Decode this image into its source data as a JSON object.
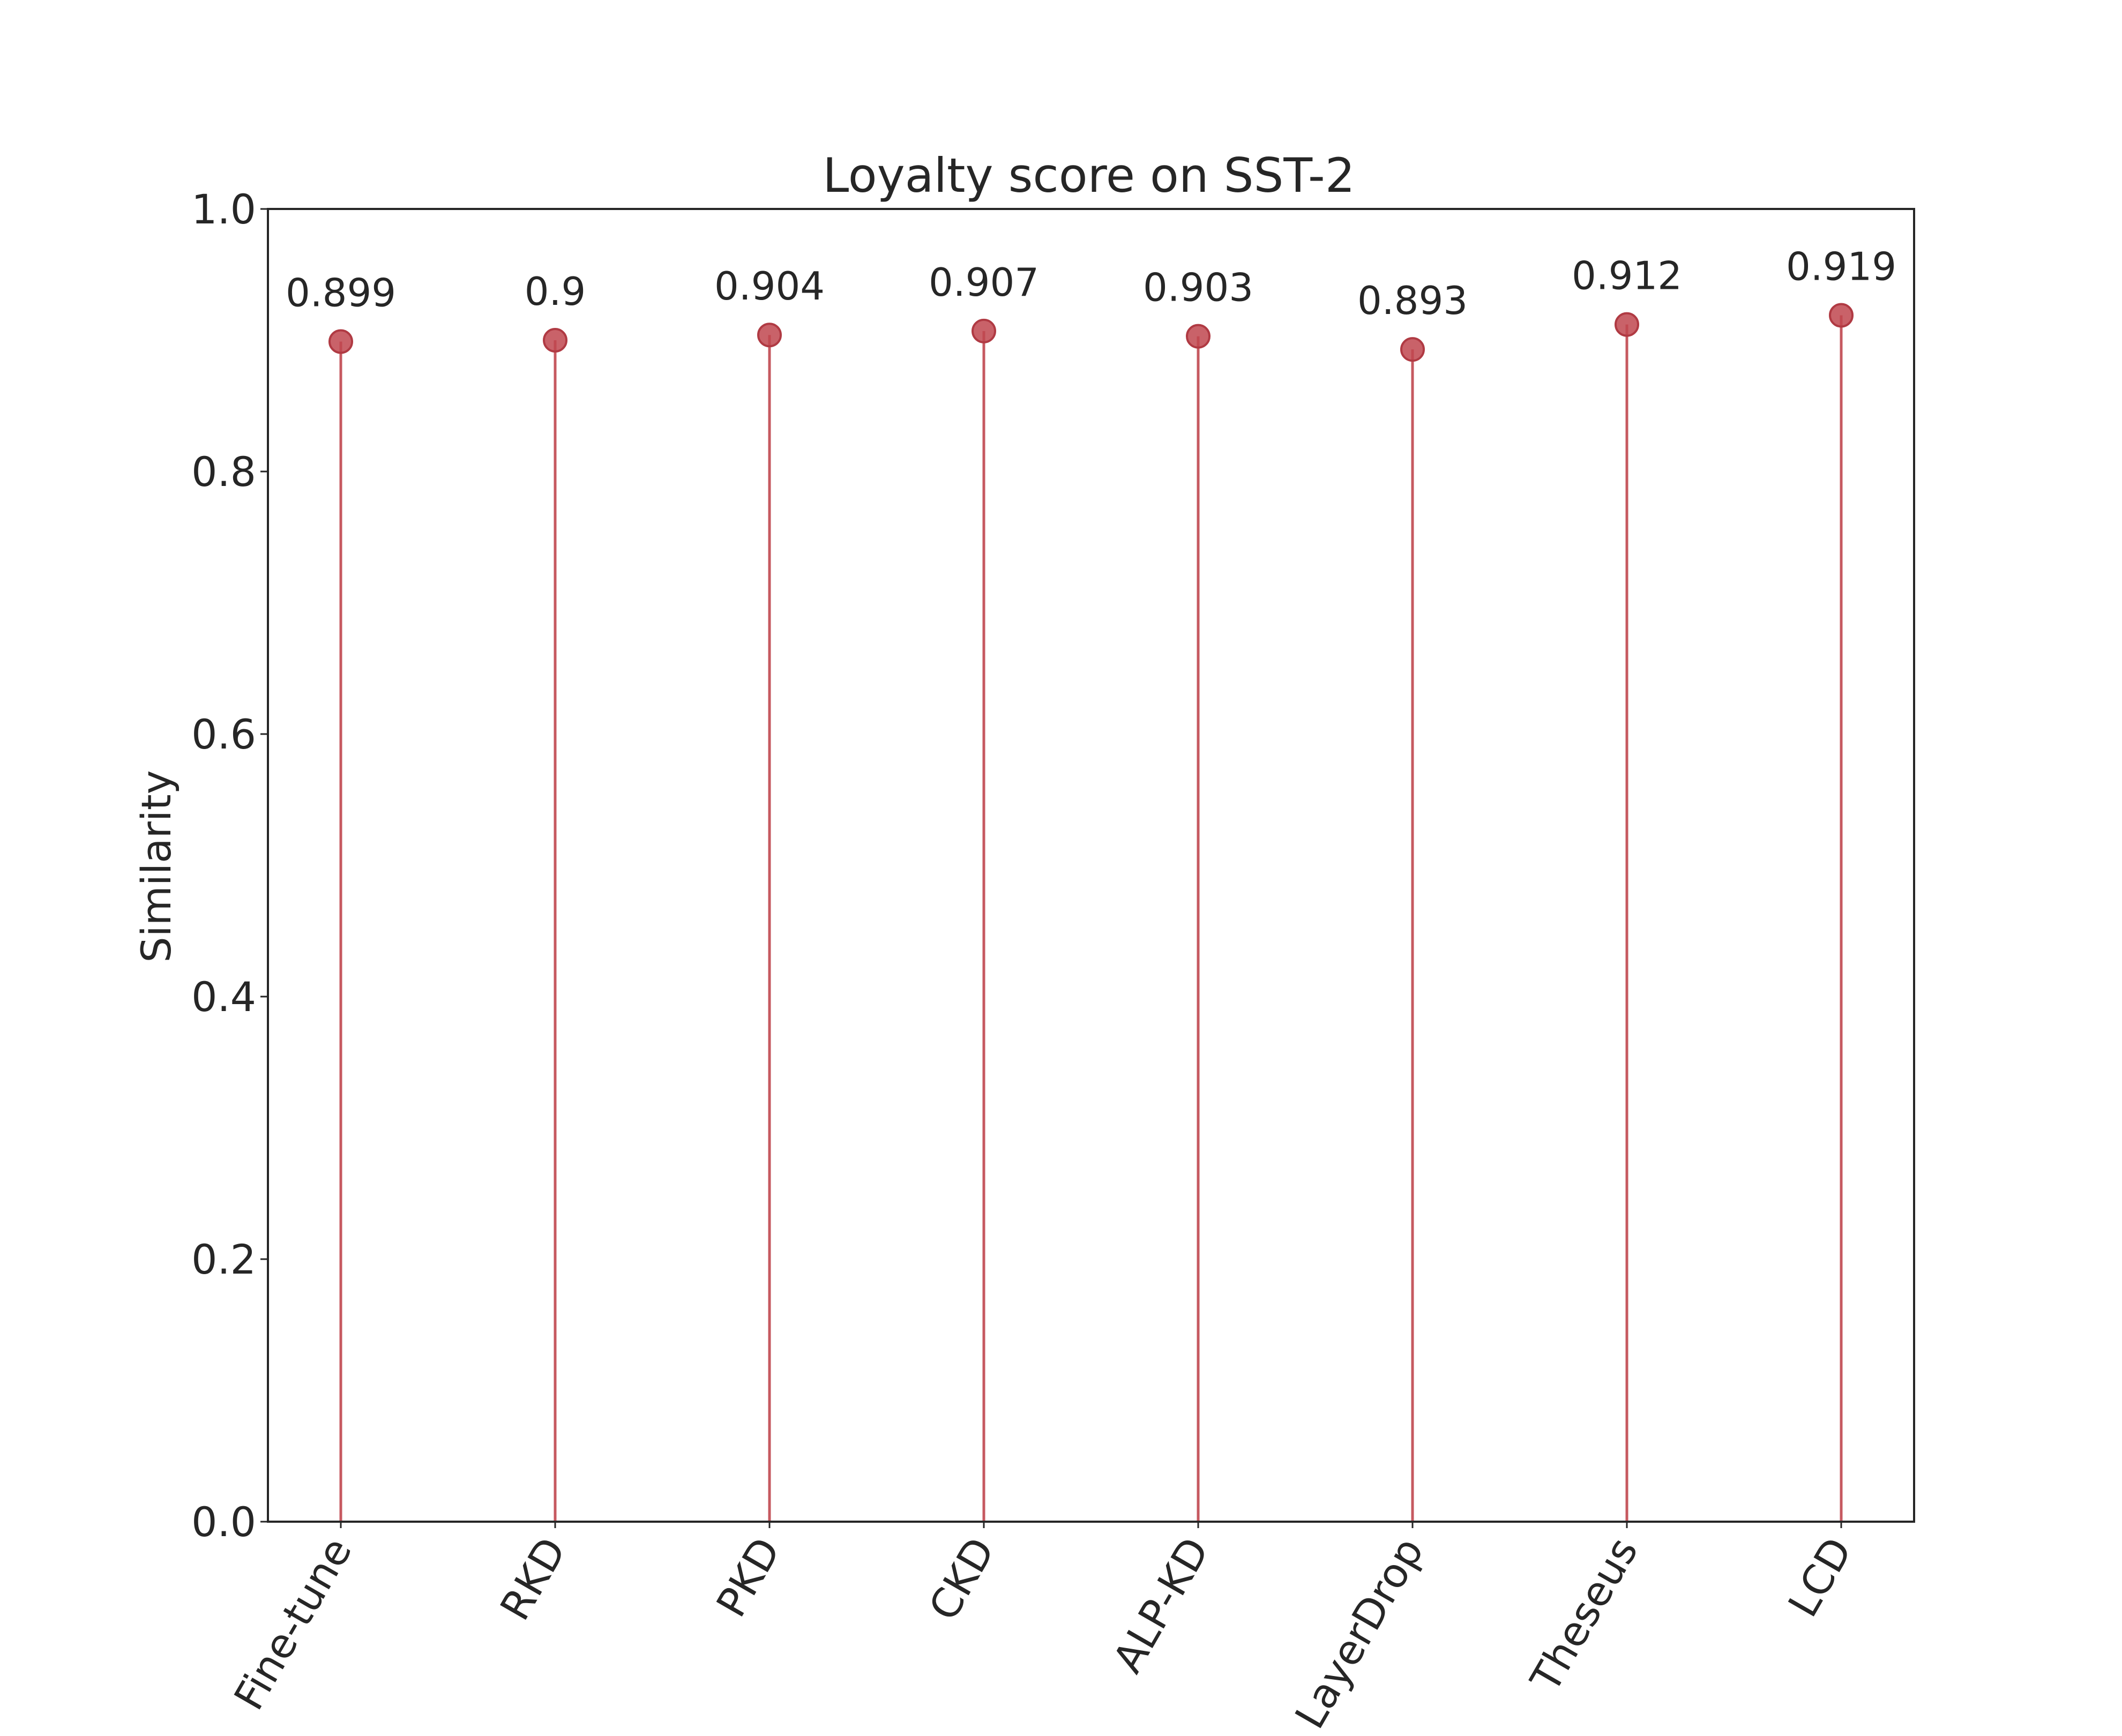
{
  "chart_data": {
    "type": "lollipop",
    "title": "Loyalty score on SST-2",
    "xlabel": "",
    "ylabel": "Similarity",
    "ylim": [
      0,
      1.0
    ],
    "yticks": [
      "0.0",
      "0.2",
      "0.4",
      "0.6",
      "0.8",
      "1.0"
    ],
    "grid": false,
    "categories": [
      "Fine-tune",
      "RKD",
      "PKD",
      "CKD",
      "ALP-KD",
      "LayerDrop",
      "Theseus",
      "LCD"
    ],
    "values": [
      0.899,
      0.9,
      0.904,
      0.907,
      0.903,
      0.893,
      0.912,
      0.919
    ],
    "value_labels": [
      "0.899",
      "0.9",
      "0.904",
      "0.907",
      "0.903",
      "0.893",
      "0.912",
      "0.919"
    ],
    "color": "#c0474f"
  }
}
